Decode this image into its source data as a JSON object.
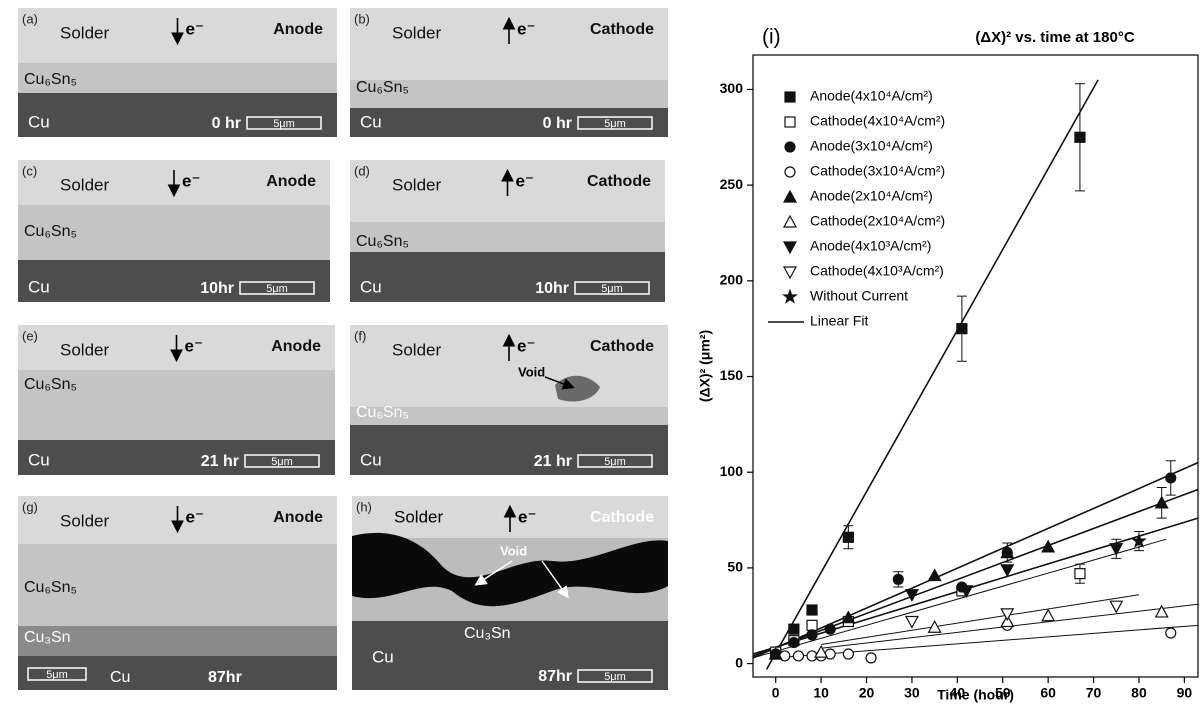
{
  "panels": [
    {
      "label": "(a)",
      "solder": "Solder",
      "electron": "e⁻",
      "side": "Anode",
      "imc": "Cu₆Sn₅",
      "cu": "Cu",
      "time": "0 hr",
      "scale": "5μm"
    },
    {
      "label": "(b)",
      "solder": "Solder",
      "electron": "e⁻",
      "side": "Cathode",
      "imc": "Cu₆Sn₅",
      "cu": "Cu",
      "time": "0 hr",
      "scale": "5μm"
    },
    {
      "label": "(c)",
      "solder": "Solder",
      "electron": "e⁻",
      "side": "Anode",
      "imc": "Cu₆Sn₅",
      "cu": "Cu",
      "time": "10hr",
      "scale": "5μm"
    },
    {
      "label": "(d)",
      "solder": "Solder",
      "electron": "e⁻",
      "side": "Cathode",
      "imc": "Cu₆Sn₅",
      "cu": "Cu",
      "time": "10hr",
      "scale": "5μm"
    },
    {
      "label": "(e)",
      "solder": "Solder",
      "electron": "e⁻",
      "side": "Anode",
      "imc": "Cu₆Sn₅",
      "cu": "Cu",
      "time": "21 hr",
      "scale": "5μm"
    },
    {
      "label": "(f)",
      "solder": "Solder",
      "electron": "e⁻",
      "side": "Cathode",
      "void": "Void",
      "imc": "Cu₆Sn₅",
      "cu": "Cu",
      "time": "21 hr",
      "scale": "5μm"
    },
    {
      "label": "(g)",
      "solder": "Solder",
      "electron": "e⁻",
      "side": "Anode",
      "imc": "Cu₆Sn₅",
      "cu3sn": "Cu₃Sn",
      "scale": "5μm",
      "cu": "Cu",
      "time": "87hr"
    },
    {
      "label": "(h)",
      "solder": "Solder",
      "electron": "e⁻",
      "side": "Cathode",
      "void": "Void",
      "cu": "Cu",
      "cu3sn": "Cu₃Sn",
      "time": "87hr",
      "scale": "5μm"
    }
  ],
  "chart_data": {
    "type": "scatter",
    "panel_label": "(i)",
    "title": "(ΔX)² vs. time at 180°C",
    "x_label": "Time (hour)",
    "y_label": "(ΔX)² (μm²)",
    "xlim": [
      -5,
      93
    ],
    "ylim": [
      -7,
      318
    ],
    "xticks": [
      0,
      10,
      20,
      30,
      40,
      50,
      60,
      70,
      80,
      90
    ],
    "yticks": [
      0,
      50,
      100,
      150,
      200,
      250,
      300
    ],
    "legend": "upper left",
    "series": [
      {
        "name": "Anode(4x10⁴A/cm²)",
        "marker": "square",
        "color": "#111111",
        "x": [
          0,
          4,
          8,
          16,
          41,
          67
        ],
        "values": [
          5,
          18,
          28,
          66,
          175,
          275
        ],
        "errors": [
          null,
          null,
          null,
          6,
          17,
          28
        ]
      },
      {
        "name": "Cathode(4x10⁴A/cm²)",
        "marker": "square-open",
        "color": "#111111",
        "x": [
          0,
          4,
          8,
          16,
          41,
          67
        ],
        "values": [
          6,
          12,
          20,
          22,
          38,
          47
        ],
        "errors": [
          null,
          null,
          null,
          null,
          null,
          5
        ]
      },
      {
        "name": "Anode(3x10⁴A/cm²)",
        "marker": "circle",
        "color": "#111111",
        "x": [
          0,
          4,
          8,
          12,
          27,
          41,
          51,
          87
        ],
        "values": [
          5,
          11,
          15,
          18,
          44,
          40,
          58,
          97
        ],
        "errors": [
          null,
          null,
          null,
          null,
          4,
          null,
          5,
          9
        ]
      },
      {
        "name": "Cathode(3x10⁴A/cm²)",
        "marker": "circle-open",
        "color": "#111111",
        "x": [
          2,
          5,
          8,
          10,
          12,
          16,
          21,
          51,
          87
        ],
        "values": [
          4,
          4,
          4,
          4,
          5,
          5,
          3,
          20,
          16
        ],
        "errors": [
          null,
          null,
          null,
          null,
          null,
          null,
          null,
          null,
          null
        ]
      },
      {
        "name": "Anode(2x10⁴A/cm²)",
        "marker": "triangle",
        "color": "#111111",
        "x": [
          0,
          16,
          35,
          51,
          60,
          85
        ],
        "values": [
          5,
          24,
          46,
          58,
          61,
          84
        ],
        "errors": [
          null,
          null,
          null,
          null,
          null,
          8
        ]
      },
      {
        "name": "Cathode(2x10⁴A/cm²)",
        "marker": "triangle-open",
        "color": "#111111",
        "x": [
          10,
          35,
          51,
          60,
          85
        ],
        "values": [
          6,
          19,
          22,
          25,
          27
        ],
        "errors": [
          null,
          null,
          null,
          null,
          null
        ]
      },
      {
        "name": "Anode(4x10³A/cm²)",
        "marker": "triangle-down",
        "color": "#111111",
        "x": [
          30,
          42,
          51,
          75
        ],
        "values": [
          36,
          38,
          49,
          60
        ],
        "errors": [
          null,
          null,
          null,
          5
        ]
      },
      {
        "name": "Cathode(4x10³A/cm²)",
        "marker": "triangle-down-open",
        "color": "#111111",
        "x": [
          30,
          51,
          75
        ],
        "values": [
          22,
          26,
          30
        ],
        "errors": [
          null,
          null,
          null
        ]
      },
      {
        "name": "Without Current",
        "marker": "star",
        "color": "#111111",
        "x": [
          80
        ],
        "values": [
          64
        ],
        "errors": [
          5
        ]
      }
    ],
    "fit": {
      "name": "Linear Fit",
      "color": "#111111",
      "lines": [
        {
          "x": [
            -2,
            71
          ],
          "y": [
            -3,
            305
          ]
        },
        {
          "x": [
            -5,
            93
          ],
          "y": [
            3,
            105
          ]
        },
        {
          "x": [
            -5,
            93
          ],
          "y": [
            4,
            91
          ]
        },
        {
          "x": [
            -5,
            93
          ],
          "y": [
            5,
            76
          ]
        },
        {
          "x": [
            -5,
            86
          ],
          "y": [
            3,
            65
          ]
        },
        {
          "x": [
            10,
            80
          ],
          "y": [
            10,
            36
          ]
        },
        {
          "x": [
            10,
            93
          ],
          "y": [
            8,
            31
          ]
        },
        {
          "x": [
            0,
            93
          ],
          "y": [
            3,
            20
          ]
        }
      ]
    }
  }
}
